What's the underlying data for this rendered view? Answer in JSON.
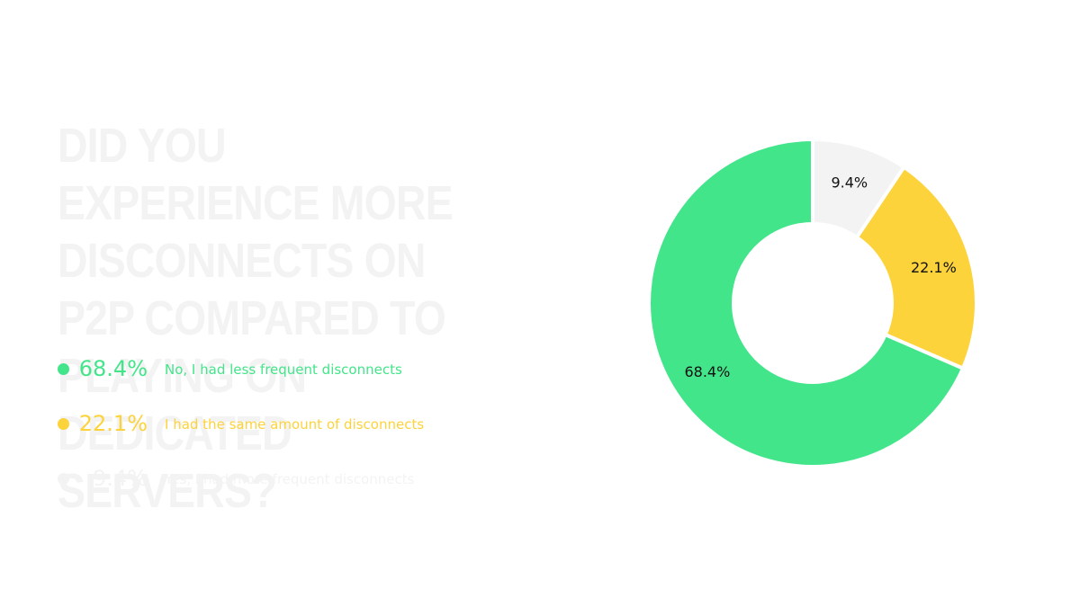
{
  "title": "Did you experience more disconnects on P2P compared to playing on dedicated servers?",
  "colors": {
    "green": "#43e58a",
    "yellow": "#fdd33c",
    "light": "#f3f3f3"
  },
  "legend": [
    {
      "percent": "68.4%",
      "label": "No, I had less frequent disconnects",
      "color": "#43e58a",
      "text_color": "#43e58a"
    },
    {
      "percent": "22.1%",
      "label": "I had the same amount of disconnects",
      "color": "#fdd33c",
      "text_color": "#fdd33c"
    },
    {
      "percent": "9.4%",
      "label": "Yes, I had more frequent disconnects",
      "color": "#f3f3f3",
      "text_color": "#f3f3f3"
    }
  ],
  "chart_data": {
    "type": "pie",
    "variant": "donut",
    "title": "Did you experience more disconnects on P2P compared to playing on dedicated servers?",
    "categories": [
      "Yes, I had more frequent disconnects",
      "I had the same amount of disconnects",
      "No, I had less frequent disconnects"
    ],
    "values": [
      9.4,
      22.1,
      68.4
    ],
    "data_labels": [
      "9.4%",
      "22.1%",
      "68.4%"
    ],
    "colors": [
      "#f3f3f3",
      "#fdd33c",
      "#43e58a"
    ],
    "start": "12 o'clock",
    "direction": "clockwise",
    "legend_position": "left"
  }
}
